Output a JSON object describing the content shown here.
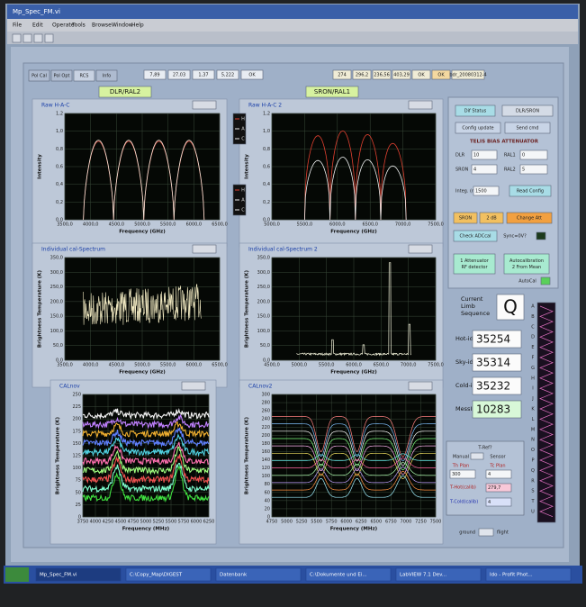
{
  "window": {
    "title": "Mp_Spec_FM.vi",
    "menu": [
      "File",
      "Edit",
      "Operate",
      "Tools",
      "Browse",
      "Window",
      "Help"
    ]
  },
  "status": {
    "values_left": [
      "7,89",
      "27,03",
      "1,37",
      "5,222",
      "OK"
    ],
    "values_right": [
      "274",
      "296,2",
      "236,56",
      "403,29",
      "OK",
      "OK",
      "bdr_20080312-4"
    ]
  },
  "tabs": [
    "Pol Cal",
    "Pol Opt",
    "RCS",
    "Info"
  ],
  "groups": [
    "DLR/RAL2",
    "SRON/RAL1"
  ],
  "plots": [
    {
      "title": "Raw H-A-C",
      "ylabel": "Intensity",
      "xlabel": "Frequency (GHz)",
      "yticks": [
        "0,0",
        "0,2",
        "0,4",
        "0,6",
        "0,8",
        "1,0",
        "1,2"
      ],
      "xticks": [
        "3500,0",
        "4000,0",
        "4500,0",
        "5000,0",
        "5500,0",
        "6000,0",
        "6500,0"
      ]
    },
    {
      "title": "Raw H-A-C 2",
      "ylabel": "Intensity",
      "xlabel": "Frequency (GHz)",
      "yticks": [
        "0,0",
        "0,2",
        "0,4",
        "0,6",
        "0,8",
        "1,0",
        "1,2"
      ],
      "xticks": [
        "5000,0",
        "5500,0",
        "6000,0",
        "6500,0",
        "7000,0",
        "7500,0"
      ]
    },
    {
      "title": "Individual cal-Spectrum",
      "ylabel": "Brightness Temperature (K)",
      "xlabel": "Frequency (GHz)",
      "yticks": [
        "0,0",
        "50,0",
        "100,0",
        "150,0",
        "200,0",
        "250,0",
        "300,0",
        "350,0"
      ],
      "xticks": [
        "3500,0",
        "4000,0",
        "4500,0",
        "5000,0",
        "5500,0",
        "6000,0",
        "6500,0"
      ]
    },
    {
      "title": "Individual cal-Spectrum 2",
      "ylabel": "Brightness Temperature (K)",
      "xlabel": "Frequency (GHz)",
      "yticks": [
        "0,0",
        "50,0",
        "100,0",
        "150,0",
        "200,0",
        "250,0",
        "300,0",
        "350,0"
      ],
      "xticks": [
        "4500,0",
        "5000,0",
        "5500,0",
        "6000,0",
        "6500,0",
        "7000,0",
        "7500,0"
      ]
    },
    {
      "title": "CALnov",
      "ylabel": "Brightness Temperature (K)",
      "xlabel": "Frequency (MHz)",
      "yticks": [
        "0",
        "25",
        "50",
        "75",
        "100",
        "125",
        "150",
        "175",
        "200",
        "225",
        "250"
      ],
      "xticks": [
        "3750",
        "4000",
        "4250",
        "4500",
        "4750",
        "5000",
        "5250",
        "5500",
        "5750",
        "6000",
        "6250"
      ]
    },
    {
      "title": "CALnov2",
      "ylabel": "Brightness Temperature (K)",
      "xlabel": "Frequency (MHz)",
      "yticks": [
        "0",
        "20",
        "40",
        "60",
        "80",
        "100",
        "120",
        "140",
        "160",
        "180",
        "200",
        "220",
        "240",
        "260",
        "280",
        "300"
      ],
      "xticks": [
        "4750",
        "5000",
        "5250",
        "5500",
        "5750",
        "6000",
        "6250",
        "6500",
        "6750",
        "7000",
        "7250",
        "7500"
      ]
    }
  ],
  "legend": [
    "H",
    "A",
    "C"
  ],
  "controls": {
    "dif_status": "Dif Status",
    "mode": "DLR/SRON",
    "config_update": "Config update",
    "send_cmd": "Send cmd",
    "attenuator_title": "TELIS BIAS ATTENUATOR",
    "dlr": {
      "label": "DLR",
      "value": "10"
    },
    "ral1": {
      "label": "RAL1",
      "value": "0"
    },
    "sron": {
      "label": "SRON",
      "value": "4"
    },
    "ral2": {
      "label": "RAL2",
      "value": "5"
    },
    "integ": {
      "label": "Integ. (ms)",
      "value": "1500"
    },
    "read_config": "Read Config",
    "att_channel": "SRON",
    "att_db": "2 dB",
    "change_att": "Change Att",
    "check_adc": "Check ADCcal",
    "sync": "Sync=0V?",
    "rf_detector": [
      "1 Attenuator",
      "RF detector"
    ],
    "autocal_mean": [
      "Autocalibration",
      "2 From Mean"
    ],
    "autocal": "AutoCal",
    "limb_label": [
      "Current",
      "Limb",
      "Sequence"
    ],
    "limb_value": "Q",
    "hot": {
      "label": "Hot-id",
      "value": "35254"
    },
    "sky": {
      "label": "Sky-id",
      "value": "35314"
    },
    "cold": {
      "label": "Cold-id",
      "value": "35232"
    },
    "mess": {
      "label": "MessID",
      "value": "10283"
    },
    "tref": "T-Ref?",
    "manual": "Manual",
    "sensor": "Sensor",
    "th_plan": {
      "label": "Th Plan",
      "value": "300"
    },
    "tc_plan": {
      "label": "Tc Plan",
      "value": "4"
    },
    "thot": {
      "label": "T-Hot(calib)",
      "value": "279,7"
    },
    "tcold": {
      "label": "T-Cold(calib)",
      "value": "4"
    },
    "ground": "ground",
    "flight": "flight"
  },
  "sequence_letters": [
    "A",
    "B",
    "C",
    "D",
    "E",
    "F",
    "G",
    "H",
    "I",
    "J",
    "K",
    "L",
    "M",
    "N",
    "O",
    "P",
    "Q",
    "R",
    "S",
    "T",
    "U"
  ],
  "taskbar": [
    "Mp_Spec_FM.vi",
    "C:\\Copy_Map\\DIGEST",
    "Datenbank",
    "C:\\Dokumente und Ei...",
    "LabVIEW 7.1 Dev...",
    "Ido - Profit Phot..."
  ]
}
